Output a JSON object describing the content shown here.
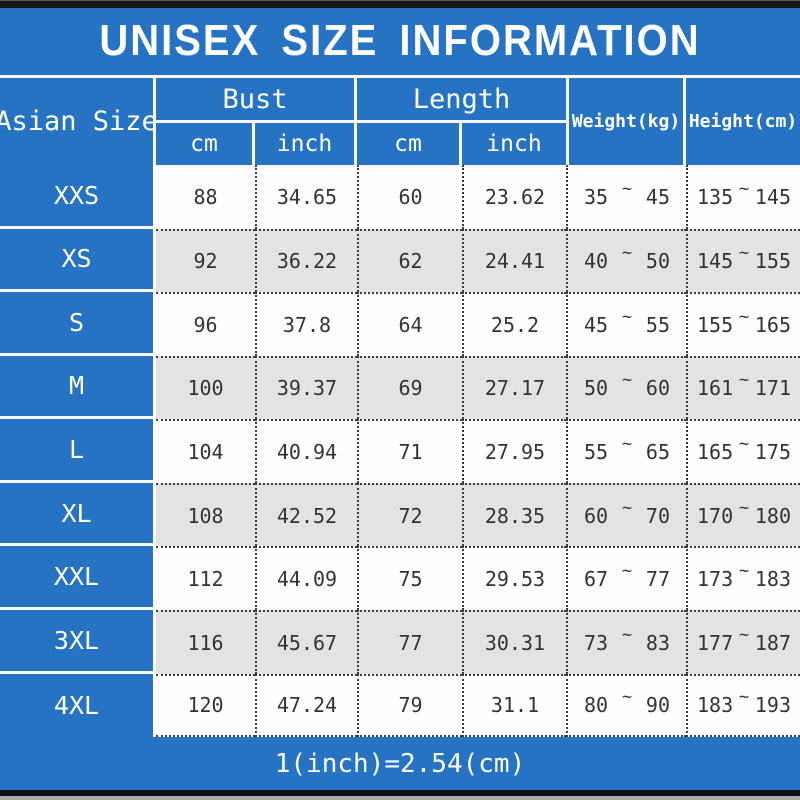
{
  "title": "UNISEX SIZE INFORMATION",
  "footer_note": "1(inch)=2.54(cm)",
  "tilde": "~",
  "header": {
    "asian_size": "Asian Size",
    "bust": "Bust",
    "length": "Length",
    "cm": "cm",
    "inch": "inch",
    "weight": "Weight(kg)",
    "height": "Height(cm)"
  },
  "rows": [
    {
      "size": "XXS",
      "bust_cm": "88",
      "bust_inch": "34.65",
      "length_cm": "60",
      "length_inch": "23.62",
      "weight_min": "35",
      "weight_max": "45",
      "height_min": "135",
      "height_max": "145"
    },
    {
      "size": "XS",
      "bust_cm": "92",
      "bust_inch": "36.22",
      "length_cm": "62",
      "length_inch": "24.41",
      "weight_min": "40",
      "weight_max": "50",
      "height_min": "145",
      "height_max": "155"
    },
    {
      "size": "S",
      "bust_cm": "96",
      "bust_inch": "37.8",
      "length_cm": "64",
      "length_inch": "25.2",
      "weight_min": "45",
      "weight_max": "55",
      "height_min": "155",
      "height_max": "165"
    },
    {
      "size": "M",
      "bust_cm": "100",
      "bust_inch": "39.37",
      "length_cm": "69",
      "length_inch": "27.17",
      "weight_min": "50",
      "weight_max": "60",
      "height_min": "161",
      "height_max": "171"
    },
    {
      "size": "L",
      "bust_cm": "104",
      "bust_inch": "40.94",
      "length_cm": "71",
      "length_inch": "27.95",
      "weight_min": "55",
      "weight_max": "65",
      "height_min": "165",
      "height_max": "175"
    },
    {
      "size": "XL",
      "bust_cm": "108",
      "bust_inch": "42.52",
      "length_cm": "72",
      "length_inch": "28.35",
      "weight_min": "60",
      "weight_max": "70",
      "height_min": "170",
      "height_max": "180"
    },
    {
      "size": "XXL",
      "bust_cm": "112",
      "bust_inch": "44.09",
      "length_cm": "75",
      "length_inch": "29.53",
      "weight_min": "67",
      "weight_max": "77",
      "height_min": "173",
      "height_max": "183"
    },
    {
      "size": "3XL",
      "bust_cm": "116",
      "bust_inch": "45.67",
      "length_cm": "77",
      "length_inch": "30.31",
      "weight_min": "73",
      "weight_max": "83",
      "height_min": "177",
      "height_max": "187"
    },
    {
      "size": "4XL",
      "bust_cm": "120",
      "bust_inch": "47.24",
      "length_cm": "79",
      "length_inch": "31.1",
      "weight_min": "80",
      "weight_max": "90",
      "height_min": "183",
      "height_max": "193"
    }
  ],
  "colors": {
    "accent_blue": "#2673c4",
    "stripe_gray": "#e4e3e3",
    "frame_black": "#161616",
    "text_dark": "#333333",
    "text_white": "#ffffff"
  },
  "chart_data": {
    "type": "table",
    "title": "UNISEX SIZE INFORMATION",
    "columns": [
      "Asian Size",
      "Bust cm",
      "Bust inch",
      "Length cm",
      "Length inch",
      "Weight(kg)",
      "Height(cm)"
    ],
    "rows": [
      [
        "XXS",
        "88",
        "34.65",
        "60",
        "23.62",
        "35~45",
        "135~145"
      ],
      [
        "XS",
        "92",
        "36.22",
        "62",
        "24.41",
        "40~50",
        "145~155"
      ],
      [
        "S",
        "96",
        "37.8",
        "64",
        "25.2",
        "45~55",
        "155~165"
      ],
      [
        "M",
        "100",
        "39.37",
        "69",
        "27.17",
        "50~60",
        "161~171"
      ],
      [
        "L",
        "104",
        "40.94",
        "71",
        "27.95",
        "55~65",
        "165~175"
      ],
      [
        "XL",
        "108",
        "42.52",
        "72",
        "28.35",
        "60~70",
        "170~180"
      ],
      [
        "XXL",
        "112",
        "44.09",
        "75",
        "29.53",
        "67~77",
        "173~183"
      ],
      [
        "3XL",
        "116",
        "45.67",
        "77",
        "30.31",
        "73~83",
        "177~187"
      ],
      [
        "4XL",
        "120",
        "47.24",
        "79",
        "31.1",
        "80~90",
        "183~193"
      ]
    ],
    "note": "1(inch)=2.54(cm)",
    "layout": "striped rows, blue header band, sub-headers cm/inch under Bust and Length"
  }
}
